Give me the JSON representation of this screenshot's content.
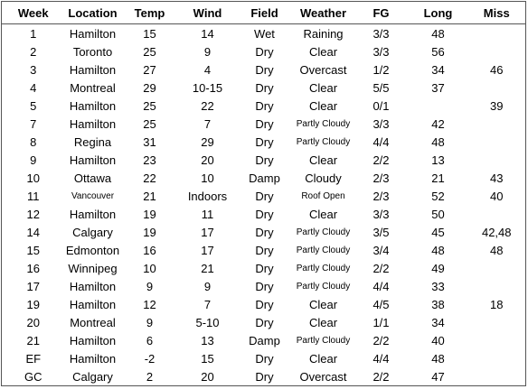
{
  "table": {
    "headers": [
      "Week",
      "Location",
      "Temp",
      "Wind",
      "Field",
      "Weather",
      "FG",
      "Long",
      "Miss"
    ],
    "rows": [
      [
        "1",
        "Hamilton",
        "15",
        "14",
        "Wet",
        "Raining",
        "3/3",
        "48",
        null
      ],
      [
        "2",
        "Toronto",
        "25",
        "9",
        "Dry",
        "Clear",
        "3/3",
        "56",
        null
      ],
      [
        "3",
        "Hamilton",
        "27",
        "4",
        "Dry",
        "Overcast",
        "1/2",
        "34",
        "46"
      ],
      [
        "4",
        "Montreal",
        "29",
        "10-15",
        "Dry",
        "Clear",
        "5/5",
        "37",
        null
      ],
      [
        "5",
        "Hamilton",
        "25",
        "22",
        "Dry",
        "Clear",
        "0/1",
        null,
        "39"
      ],
      [
        "7",
        "Hamilton",
        "25",
        "7",
        "Dry",
        "Partly Cloudy",
        "3/3",
        "42",
        null
      ],
      [
        "8",
        "Regina",
        "31",
        "29",
        "Dry",
        "Partly Cloudy",
        "4/4",
        "48",
        null
      ],
      [
        "9",
        "Hamilton",
        "23",
        "20",
        "Dry",
        "Clear",
        "2/2",
        "13",
        null
      ],
      [
        "10",
        "Ottawa",
        "22",
        "10",
        "Damp",
        "Cloudy",
        "2/3",
        "21",
        "43"
      ],
      [
        "11",
        "Vancouver",
        "21",
        "Indoors",
        "Dry",
        "Roof Open",
        "2/3",
        "52",
        "40"
      ],
      [
        "12",
        "Hamilton",
        "19",
        "11",
        "Dry",
        "Clear",
        "3/3",
        "50",
        null
      ],
      [
        "14",
        "Calgary",
        "19",
        "17",
        "Dry",
        "Partly Cloudy",
        "3/5",
        "45",
        "42,48"
      ],
      [
        "15",
        "Edmonton",
        "16",
        "17",
        "Dry",
        "Partly Cloudy",
        "3/4",
        "48",
        "48"
      ],
      [
        "16",
        "Winnipeg",
        "10",
        "21",
        "Dry",
        "Partly Cloudy",
        "2/2",
        "49",
        null
      ],
      [
        "17",
        "Hamilton",
        "9",
        "9",
        "Dry",
        "Partly Cloudy",
        "4/4",
        "33",
        null
      ],
      [
        "19",
        "Hamilton",
        "12",
        "7",
        "Dry",
        "Clear",
        "4/5",
        "38",
        "18"
      ],
      [
        "20",
        "Montreal",
        "9",
        "5-10",
        "Dry",
        "Clear",
        "1/1",
        "34",
        null
      ],
      [
        "21",
        "Hamilton",
        "6",
        "13",
        "Damp",
        "Partly Cloudy",
        "2/2",
        "40",
        null
      ],
      [
        "EF",
        "Hamilton",
        "-2",
        "15",
        "Dry",
        "Clear",
        "4/4",
        "48",
        null
      ],
      [
        "GC",
        "Calgary",
        "2",
        "20",
        "Dry",
        "Overcast",
        "2/2",
        "47",
        null
      ]
    ]
  }
}
